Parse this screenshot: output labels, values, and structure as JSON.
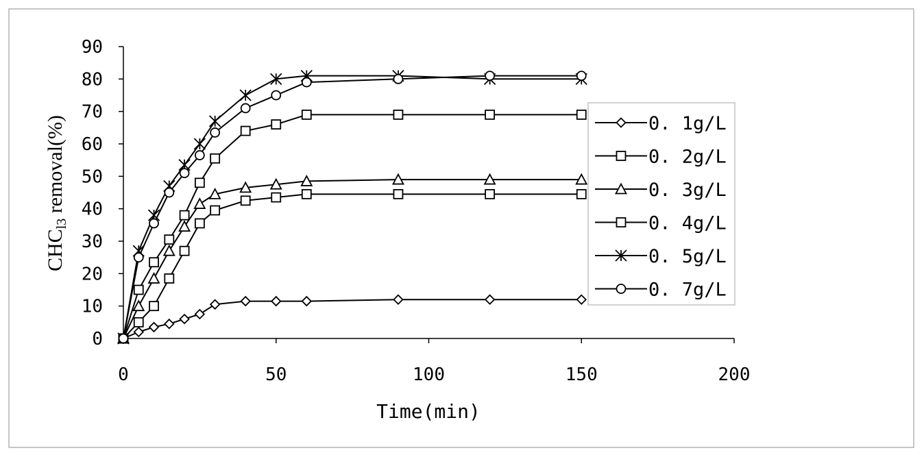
{
  "chart_data": {
    "type": "line",
    "title": "",
    "xlabel": "Time(min)",
    "ylabel": "CHCl3 removal(%)",
    "ylabel_parts": {
      "main": "CHC",
      "sub": "l3",
      "rest": " removal(%)"
    },
    "xlim": [
      0,
      200
    ],
    "ylim": [
      0,
      90
    ],
    "xticks": [
      0,
      50,
      100,
      150,
      200
    ],
    "yticks": [
      0,
      10,
      20,
      30,
      40,
      50,
      60,
      70,
      80,
      90
    ],
    "grid": false,
    "legend_position": "right",
    "series": [
      {
        "name": "0.1g/L",
        "marker": "diamond",
        "x": [
          0,
          5,
          10,
          15,
          20,
          25,
          30,
          40,
          50,
          60,
          90,
          120,
          150
        ],
        "y": [
          0,
          2,
          3.5,
          4.5,
          6,
          7.5,
          10.5,
          11.5,
          11.5,
          11.5,
          12,
          12,
          12
        ]
      },
      {
        "name": "0.2g/L",
        "marker": "square",
        "x": [
          0,
          5,
          10,
          15,
          20,
          25,
          30,
          40,
          50,
          60,
          90,
          120,
          150
        ],
        "y": [
          0,
          5,
          10,
          18.5,
          27,
          35.5,
          39.5,
          42.5,
          43.5,
          44.5,
          44.5,
          44.5,
          44.5
        ]
      },
      {
        "name": "0.3g/L",
        "marker": "triangle",
        "x": [
          0,
          5,
          10,
          15,
          20,
          25,
          30,
          40,
          50,
          60,
          90,
          120,
          150
        ],
        "y": [
          0,
          10,
          18.5,
          27,
          34.5,
          41.5,
          44.5,
          46.5,
          47.5,
          48.5,
          49,
          49,
          49
        ]
      },
      {
        "name": "0.4g/L",
        "marker": "square",
        "x": [
          0,
          5,
          10,
          15,
          20,
          25,
          30,
          40,
          50,
          60,
          90,
          120,
          150
        ],
        "y": [
          0,
          15,
          23.5,
          30.5,
          38,
          48,
          55.5,
          64,
          66,
          69,
          69,
          69,
          69
        ]
      },
      {
        "name": "0.5g/L",
        "marker": "asterisk",
        "x": [
          0,
          5,
          10,
          15,
          20,
          25,
          30,
          40,
          50,
          60,
          90,
          120,
          150
        ],
        "y": [
          0,
          27,
          38,
          47,
          53.5,
          60,
          67,
          75,
          80,
          81,
          81,
          80,
          80
        ]
      },
      {
        "name": "0.7g/L",
        "marker": "circle",
        "x": [
          0,
          5,
          10,
          15,
          20,
          25,
          30,
          40,
          50,
          60,
          90,
          120,
          150
        ],
        "y": [
          0,
          25,
          35.5,
          45,
          51,
          56.5,
          63.5,
          71,
          75,
          79,
          80,
          81,
          81
        ]
      }
    ]
  }
}
